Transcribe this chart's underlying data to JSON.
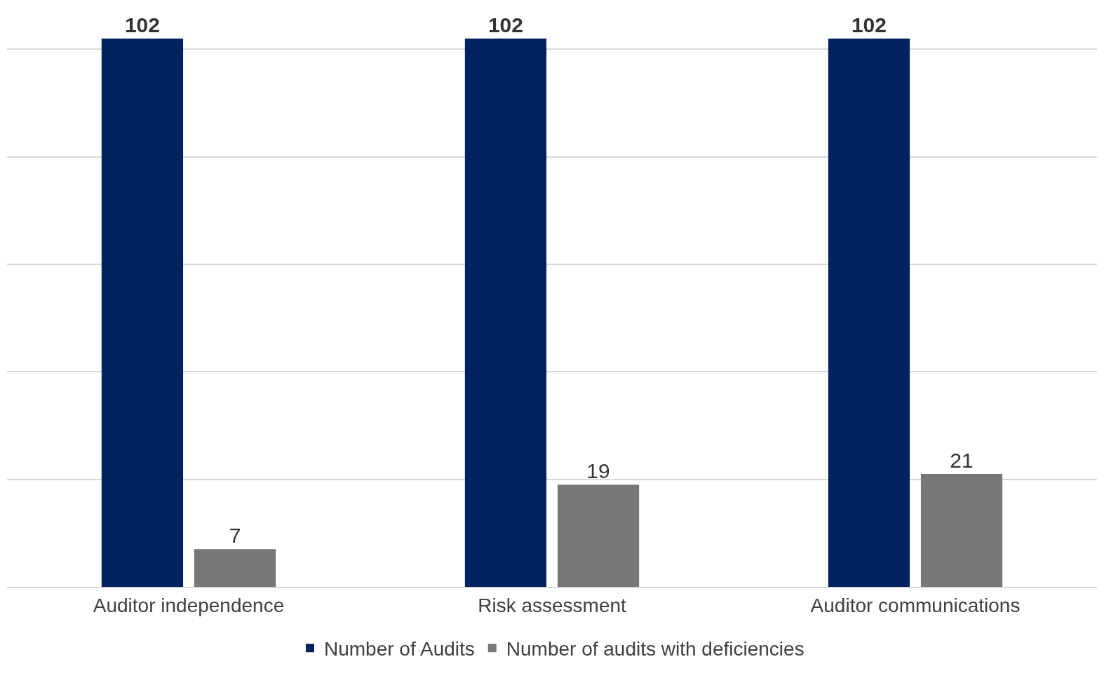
{
  "chart_data": {
    "type": "bar",
    "categories": [
      "Auditor independence",
      "Risk assessment",
      "Auditor communications"
    ],
    "series": [
      {
        "name": "Number of Audits",
        "color": "#00235f",
        "values": [
          102,
          102,
          102
        ]
      },
      {
        "name": "Number of audits with deficiencies",
        "color": "#77777a",
        "values": [
          7,
          19,
          21
        ]
      }
    ],
    "ylim": [
      0,
      102
    ],
    "yticks": [
      {
        "value": 0,
        "label": null
      },
      {
        "value": 20,
        "label": null
      },
      {
        "value": 40,
        "label": null
      },
      {
        "value": 60,
        "label": null
      },
      {
        "value": 80,
        "label": null
      },
      {
        "value": 100,
        "label": null
      }
    ],
    "grid": "y",
    "legend": "bottom",
    "data_labels": true,
    "tick_labels": "x"
  }
}
